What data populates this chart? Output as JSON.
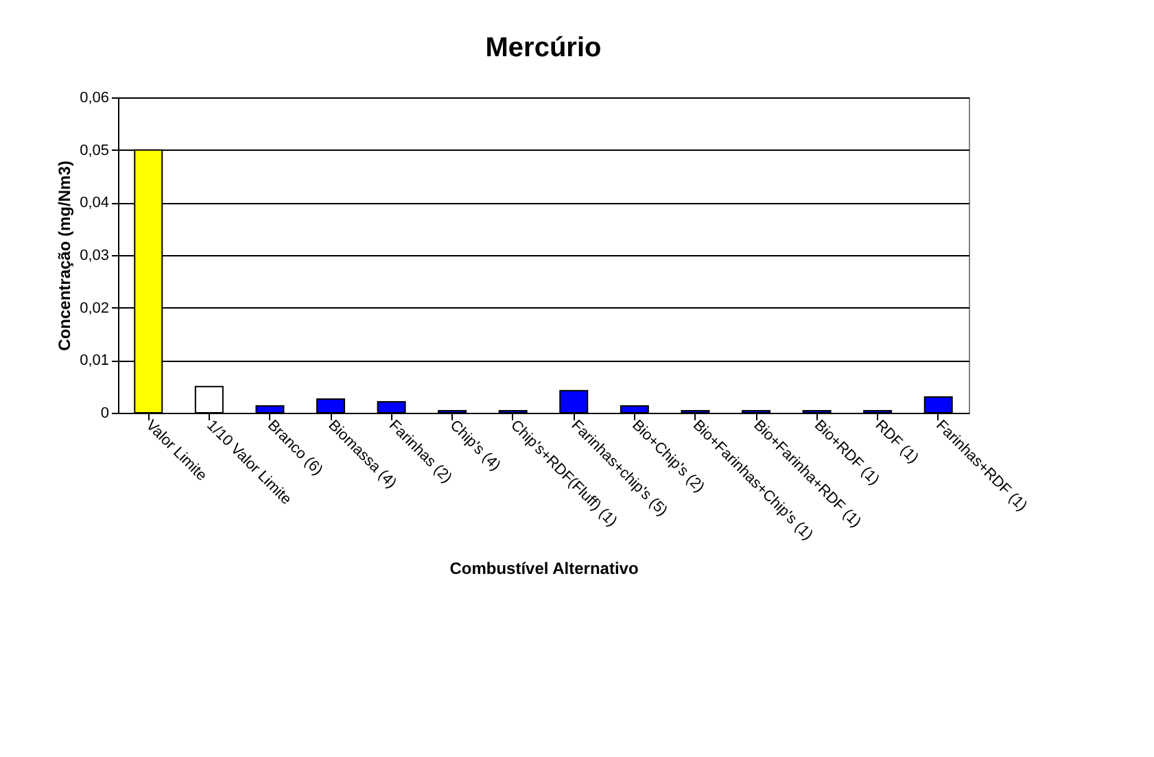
{
  "chart_data": {
    "type": "bar",
    "title": "Mercúrio",
    "xlabel": "Combustível Alternativo",
    "ylabel": "Concentração (mg/Nm3)",
    "categories": [
      "Valor Limite",
      "1/10 Valor Limite",
      "Branco (6)",
      "Biomassa (4)",
      "Farinhas (2)",
      "Chip's (4)",
      "Chip's+RDF(Fluff) (1)",
      "Farinhas+chip's (5)",
      "Bio+Chip's (2)",
      "Bio+Farinhas+Chip's (1)",
      "Bio+Farinha+RDF (1)",
      "Bio+RDF (1)",
      "RDF (1)",
      "Farinhas+RDF (1)"
    ],
    "values": [
      0.05,
      0.005,
      0.0013,
      0.0026,
      0.0021,
      0.0004,
      0.0004,
      0.0042,
      0.0013,
      0.0004,
      0.0004,
      0.0004,
      0.0004,
      0.003
    ],
    "colors": [
      "#ffff00",
      "#ffffff",
      "#0000ff",
      "#0000ff",
      "#0000ff",
      "#0000ff",
      "#0000ff",
      "#0000ff",
      "#0000ff",
      "#0000ff",
      "#0000ff",
      "#0000ff",
      "#0000ff",
      "#0000ff"
    ],
    "ylim": [
      0,
      0.06
    ],
    "yticks": [
      {
        "value": 0,
        "label": "0"
      },
      {
        "value": 0.01,
        "label": "0,01"
      },
      {
        "value": 0.02,
        "label": "0,02"
      },
      {
        "value": 0.03,
        "label": "0,03"
      },
      {
        "value": 0.04,
        "label": "0,04"
      },
      {
        "value": 0.05,
        "label": "0,05"
      },
      {
        "value": 0.06,
        "label": "0,06"
      }
    ],
    "grid": "y"
  }
}
